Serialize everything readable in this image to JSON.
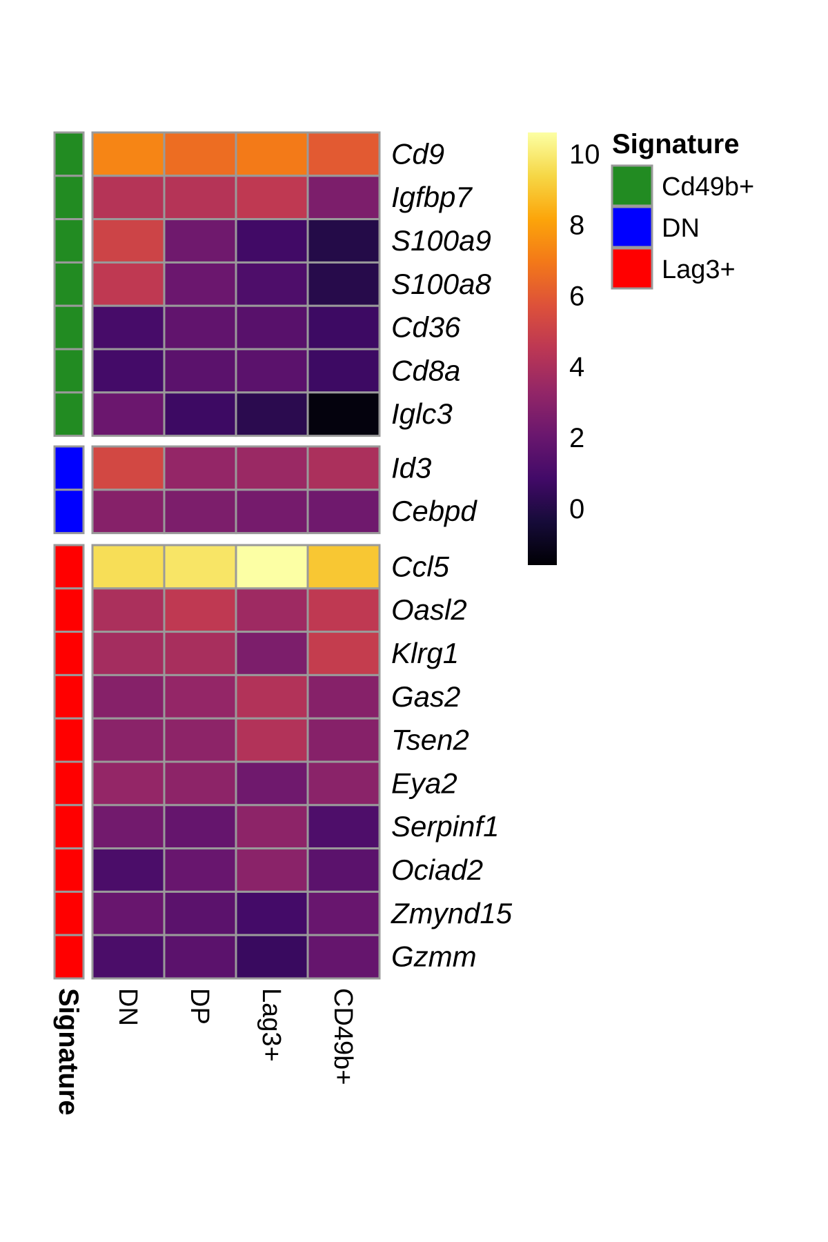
{
  "chart_data": {
    "type": "heatmap",
    "title": "",
    "columns": [
      "DN",
      "DP",
      "Lag3+",
      "CD49b+"
    ],
    "annotation_title": "Signature",
    "groups": [
      {
        "signature": "Cd49b+",
        "genes": [
          "Cd9",
          "Igfbp7",
          "S100a9",
          "S100a8",
          "Cd36",
          "Cd8a",
          "Iglc3"
        ],
        "values": [
          [
            7.3,
            6.6,
            7.0,
            6.0
          ],
          [
            4.3,
            4.3,
            4.6,
            2.6
          ],
          [
            5.1,
            2.2,
            0.8,
            0.0
          ],
          [
            4.6,
            2.1,
            1.2,
            0.1
          ],
          [
            1.0,
            1.8,
            1.5,
            0.7
          ],
          [
            0.9,
            1.6,
            1.6,
            0.7
          ],
          [
            2.1,
            0.7,
            0.2,
            -1.4
          ]
        ]
      },
      {
        "signature": "DN",
        "genes": [
          "Id3",
          "Cebpd"
        ],
        "values": [
          [
            5.3,
            3.3,
            3.5,
            4.0
          ],
          [
            2.9,
            2.6,
            2.4,
            2.2
          ]
        ]
      },
      {
        "signature": "Lag3+",
        "genes": [
          "Ccl5",
          "Oasl2",
          "Klrg1",
          "Gas2",
          "Tsen2",
          "Eya2",
          "Serpinf1",
          "Ociad2",
          "Zmynd15",
          "Gzmm"
        ],
        "values": [
          [
            9.6,
            9.8,
            10.6,
            9.0
          ],
          [
            4.0,
            4.6,
            3.6,
            4.6
          ],
          [
            3.8,
            3.9,
            2.6,
            4.8
          ],
          [
            2.9,
            3.3,
            4.2,
            2.9
          ],
          [
            3.0,
            3.1,
            4.2,
            2.9
          ],
          [
            3.3,
            3.1,
            2.2,
            3.0
          ],
          [
            2.3,
            1.9,
            3.1,
            1.2
          ],
          [
            1.1,
            2.0,
            3.0,
            1.6
          ],
          [
            2.0,
            1.6,
            0.9,
            2.0
          ],
          [
            1.1,
            1.6,
            0.6,
            1.9
          ]
        ]
      }
    ],
    "colorbar": {
      "min": -1.6,
      "max": 10.6,
      "ticks": [
        0,
        2,
        4,
        6,
        8,
        10
      ],
      "tick_labels": [
        "0",
        "2",
        "4",
        "6",
        "8",
        "10"
      ],
      "palette": "inferno"
    },
    "legend": {
      "title": "Signature",
      "items": [
        {
          "label": "Cd49b+",
          "color": "#228B22"
        },
        {
          "label": "DN",
          "color": "#0000FF"
        },
        {
          "label": "Lag3+",
          "color": "#FF0000"
        }
      ]
    },
    "cell_border_color": "#9A9A9A"
  }
}
